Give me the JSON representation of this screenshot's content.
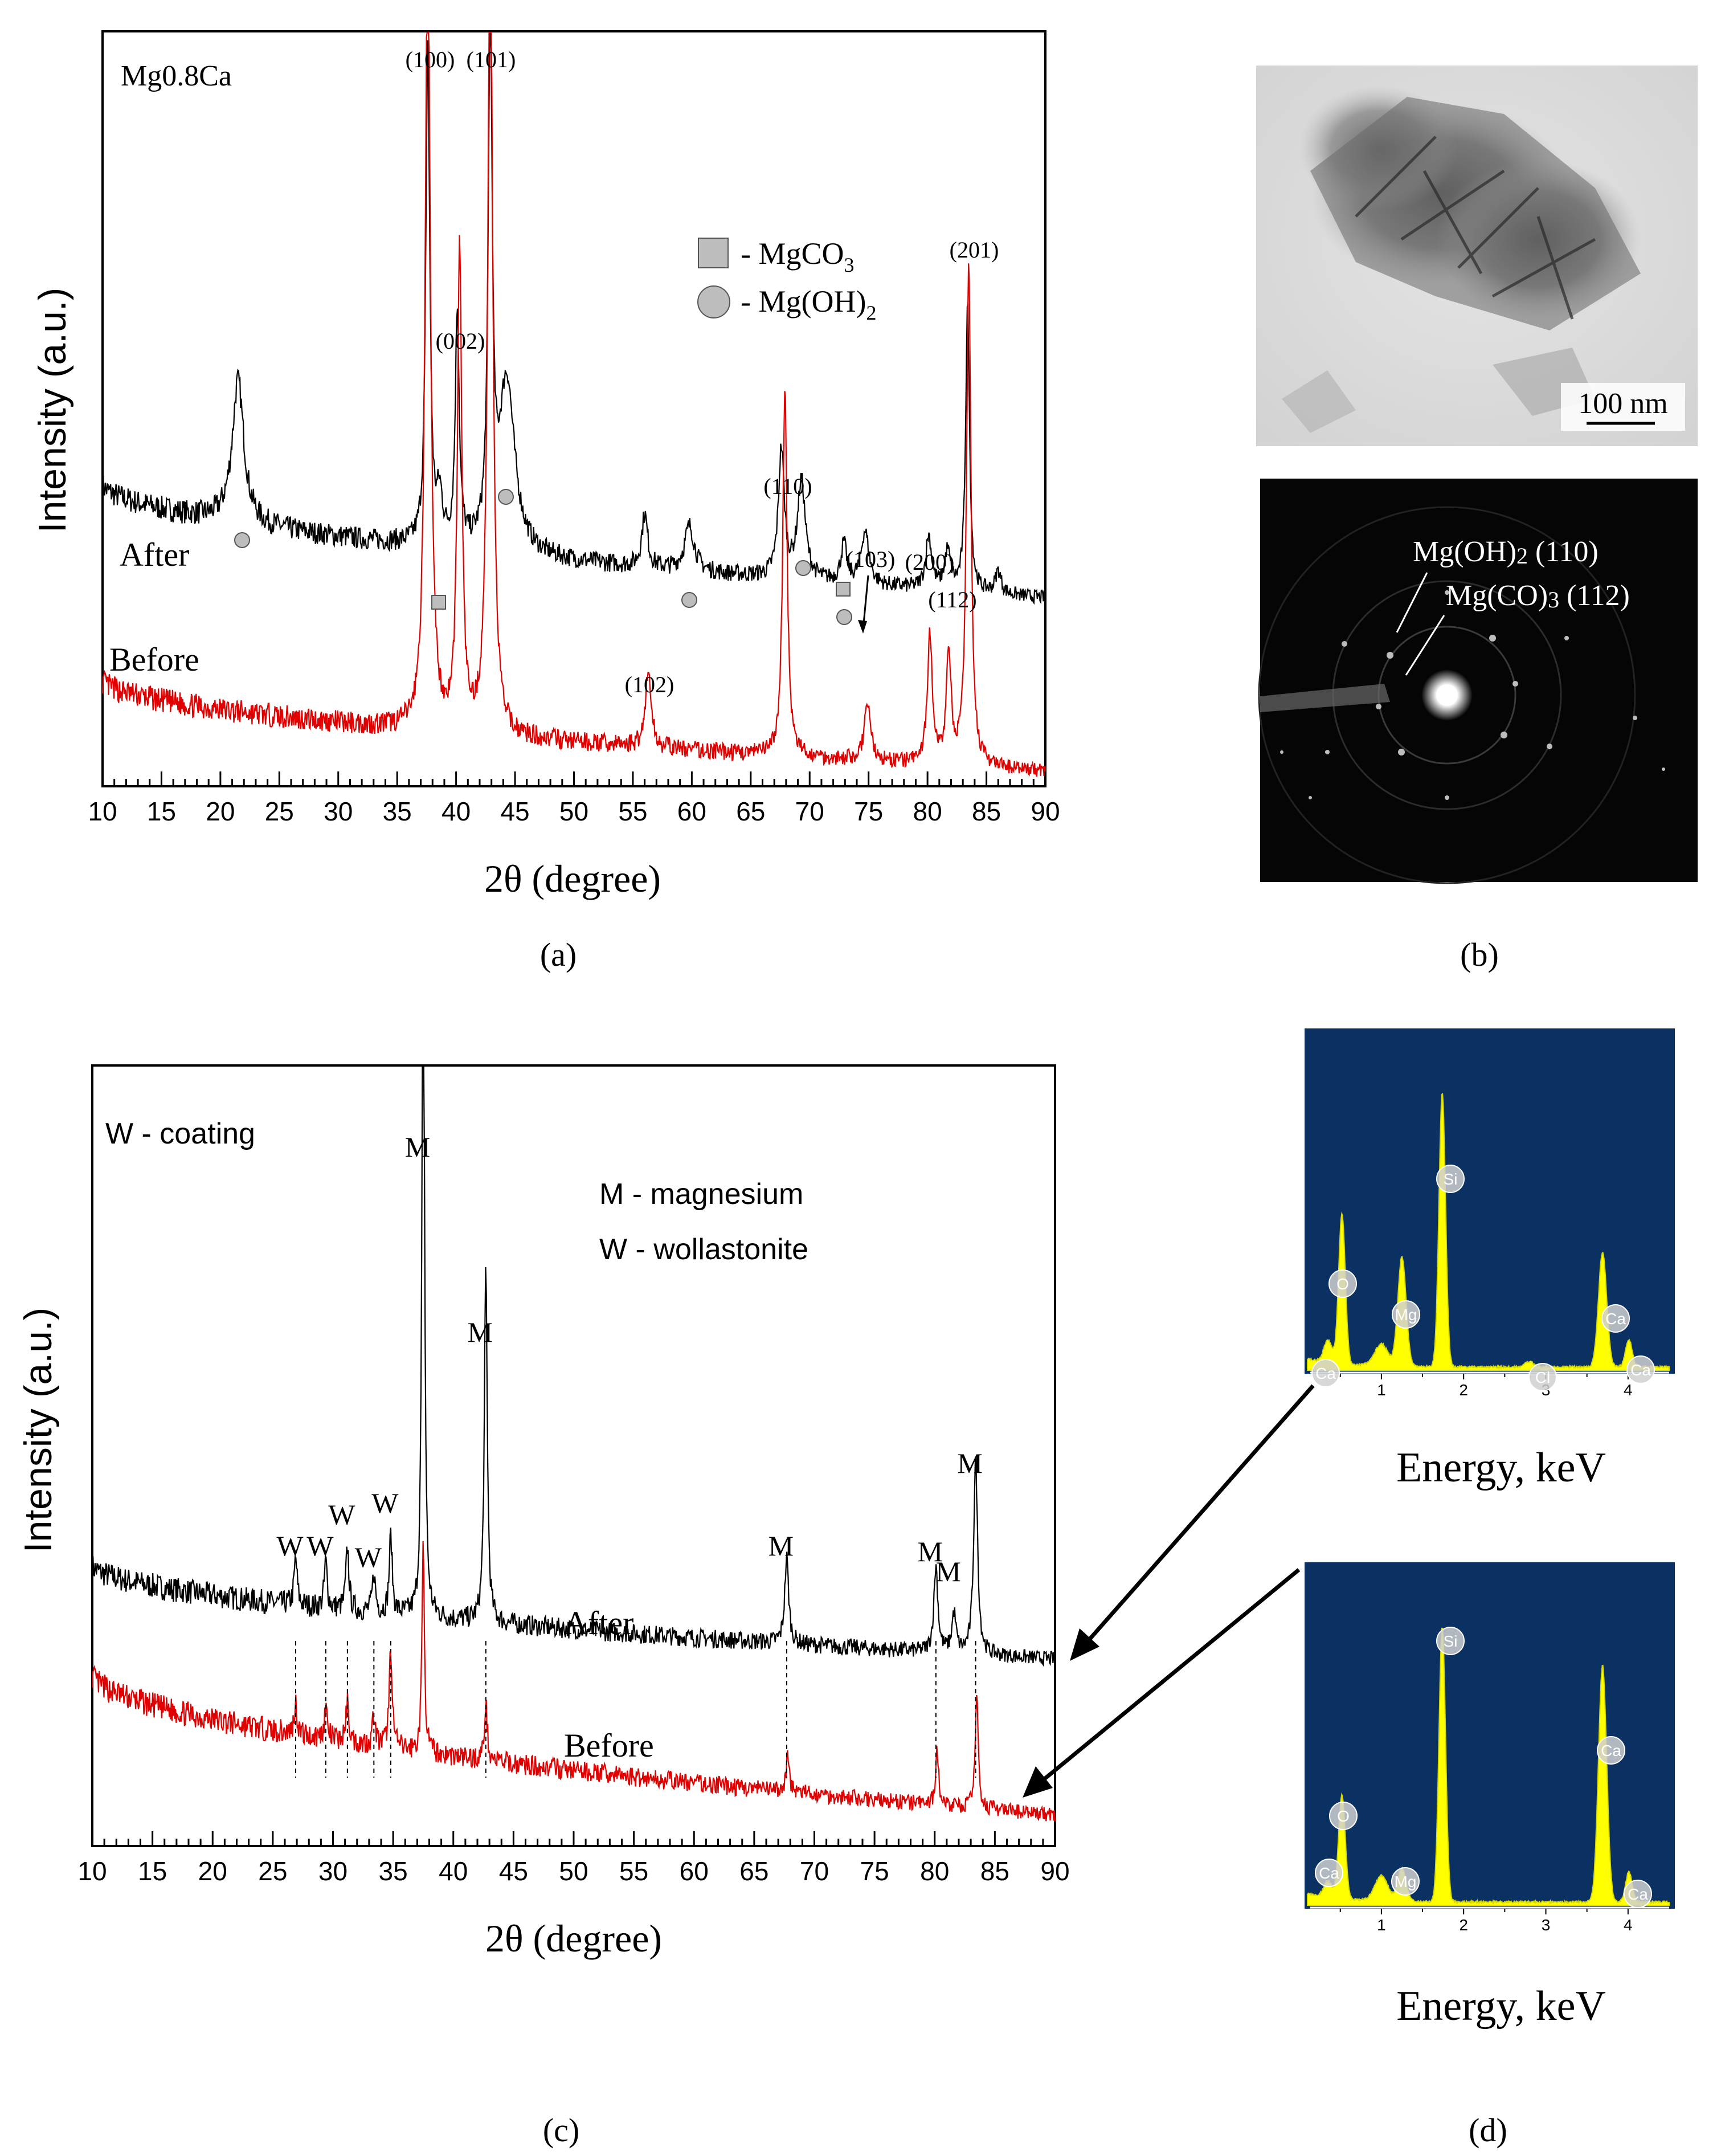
{
  "panel_labels": {
    "a": "(a)",
    "b": "(b)",
    "c": "(c)",
    "d": "(d)"
  },
  "colors": {
    "after": "#000000",
    "before": "#e10000",
    "eds_bg": "#0b3163",
    "eds_fill": "#ffff00",
    "marker_fill": "#bdbdbd"
  },
  "chart_data": [
    {
      "id": "a",
      "type": "line",
      "title": "",
      "sample_label": "Mg0.8Ca",
      "xlabel": "2θ (degree)",
      "ylabel": "Intensity (a.u.)",
      "xlim": [
        10,
        90
      ],
      "xticks": [
        10,
        15,
        20,
        25,
        30,
        35,
        40,
        45,
        50,
        55,
        60,
        65,
        70,
        75,
        80,
        85,
        90
      ],
      "ylim": [
        0,
        100
      ],
      "series": [
        {
          "name": "After",
          "color": "#000000",
          "baseline_start": 40,
          "baseline_end": 25,
          "peaks": [
            [
              21.5,
              19,
              0.6
            ],
            [
              37.6,
              66,
              0.2
            ],
            [
              38.6,
              6,
              0.3
            ],
            [
              40.1,
              31,
              0.2
            ],
            [
              42.9,
              68,
              0.2
            ],
            [
              44.3,
              23,
              0.8
            ],
            [
              56,
              7,
              0.3
            ],
            [
              59.8,
              6,
              0.5
            ],
            [
              67.6,
              17,
              0.3
            ],
            [
              69.3,
              13,
              0.4
            ],
            [
              72.9,
              5,
              0.3
            ],
            [
              74.7,
              7,
              0.4
            ],
            [
              80.1,
              7,
              0.3
            ],
            [
              81.7,
              5,
              0.3
            ],
            [
              83.4,
              38,
              0.2
            ],
            [
              86,
              3,
              0.3
            ]
          ]
        },
        {
          "name": "Before",
          "color": "#e10000",
          "baseline_start": 14,
          "baseline_end": 2,
          "peaks": [
            [
              37.6,
              110,
              0.25
            ],
            [
              40.3,
              64,
              0.22
            ],
            [
              42.9,
              110,
              0.25
            ],
            [
              56.3,
              10,
              0.3
            ],
            [
              67.9,
              49,
              0.22
            ],
            [
              74.9,
              8,
              0.3
            ],
            [
              80.2,
              17,
              0.25
            ],
            [
              81.8,
              14,
              0.25
            ],
            [
              83.5,
              67,
              0.22
            ]
          ]
        }
      ],
      "annotations": [
        {
          "text": "(100)",
          "x": 38.3
        },
        {
          "text": "(101)",
          "x": 42.6
        },
        {
          "text": "(002)",
          "x": 40.2
        },
        {
          "text": "(201)",
          "x": 83.8
        },
        {
          "text": "(110)",
          "x": 67.9
        },
        {
          "text": "(103)",
          "x": 75.6
        },
        {
          "text": "(200)",
          "x": 80.2
        },
        {
          "text": "(112)",
          "x": 82.5
        },
        {
          "text": "(102)",
          "x": 56.3
        }
      ],
      "legend": [
        {
          "shape": "square",
          "label": "- MgCO3"
        },
        {
          "shape": "circle",
          "label": "- Mg(OH)2"
        }
      ],
      "series_labels": [
        "After",
        "Before"
      ]
    },
    {
      "id": "c",
      "type": "line",
      "title": "",
      "sample_label": "W - coating",
      "xlabel": "2θ (degree)",
      "ylabel": "Intensity (a.u.)",
      "xlim": [
        10,
        90
      ],
      "xticks": [
        10,
        15,
        20,
        25,
        30,
        35,
        40,
        45,
        50,
        55,
        60,
        65,
        70,
        75,
        80,
        85,
        90
      ],
      "ylim": [
        0,
        100
      ],
      "series": [
        {
          "name": "After",
          "color": "#000000",
          "baseline_start": 36,
          "baseline_end": 24,
          "peaks": [
            [
              26.9,
              6,
              0.15
            ],
            [
              29.4,
              6,
              0.15
            ],
            [
              31.2,
              8,
              0.15
            ],
            [
              33.4,
              5,
              0.15
            ],
            [
              34.8,
              10,
              0.15
            ],
            [
              37.5,
              98,
              0.12
            ],
            [
              42.7,
              45,
              0.15
            ],
            [
              67.7,
              11,
              0.2
            ],
            [
              80.1,
              11,
              0.2
            ],
            [
              81.6,
              5,
              0.2
            ],
            [
              83.4,
              25,
              0.2
            ]
          ]
        },
        {
          "name": "Before",
          "color": "#e10000",
          "baseline_start": 22,
          "baseline_end": 4,
          "peaks": [
            [
              26.9,
              4,
              0.15
            ],
            [
              29.4,
              4,
              0.15
            ],
            [
              31.2,
              5,
              0.15
            ],
            [
              33.4,
              4,
              0.15
            ],
            [
              34.8,
              13,
              0.15
            ],
            [
              37.5,
              27,
              0.12
            ],
            [
              42.7,
              7,
              0.15
            ],
            [
              67.8,
              5,
              0.15
            ],
            [
              80.2,
              7,
              0.15
            ],
            [
              83.5,
              15,
              0.15
            ]
          ]
        }
      ],
      "peak_marks": [
        {
          "label": "W",
          "x": 26.9
        },
        {
          "label": "W",
          "x": 29.4
        },
        {
          "label": "W",
          "x": 31.2
        },
        {
          "label": "W",
          "x": 33.4
        },
        {
          "label": "W",
          "x": 34.8
        },
        {
          "label": "M",
          "x": 37.5
        },
        {
          "label": "M",
          "x": 42.7
        },
        {
          "label": "M",
          "x": 67.7
        },
        {
          "label": "M",
          "x": 80.1
        },
        {
          "label": "M",
          "x": 81.6
        },
        {
          "label": "M",
          "x": 83.4
        }
      ],
      "legend_text": [
        "M - magnesium",
        "W - wollastonite"
      ],
      "series_labels": [
        "After",
        "Before"
      ]
    }
  ],
  "panel_b": {
    "scale_bar": "100 nm",
    "saed_label_1": "Mg(OH)2 (110)",
    "saed_label_2": "Mg(CO)3 (112)"
  },
  "panel_d": [
    {
      "xlabel": "Energy, keV",
      "xticks": [
        "1",
        "2",
        "3",
        "4"
      ],
      "element_labels": [
        "Ca",
        "O",
        "Mg",
        "Si",
        "Cl",
        "Ca",
        "Ca"
      ],
      "peaks": [
        [
          0.35,
          8,
          0.05
        ],
        [
          0.52,
          55,
          0.04
        ],
        [
          1.0,
          8,
          0.08
        ],
        [
          1.25,
          40,
          0.05
        ],
        [
          1.74,
          100,
          0.04
        ],
        [
          2.8,
          2,
          0.05
        ],
        [
          3.69,
          42,
          0.05
        ],
        [
          4.01,
          10,
          0.04
        ]
      ]
    },
    {
      "xlabel": "Energy, keV",
      "xticks": [
        "1",
        "2",
        "3",
        "4"
      ],
      "element_labels": [
        "Ca",
        "O",
        "Mg",
        "Si",
        "Ca",
        "Ca"
      ],
      "peaks": [
        [
          0.35,
          6,
          0.05
        ],
        [
          0.52,
          38,
          0.04
        ],
        [
          1.0,
          9,
          0.08
        ],
        [
          1.25,
          12,
          0.05
        ],
        [
          1.74,
          100,
          0.04
        ],
        [
          3.69,
          86,
          0.05
        ],
        [
          4.01,
          11,
          0.04
        ]
      ]
    }
  ]
}
